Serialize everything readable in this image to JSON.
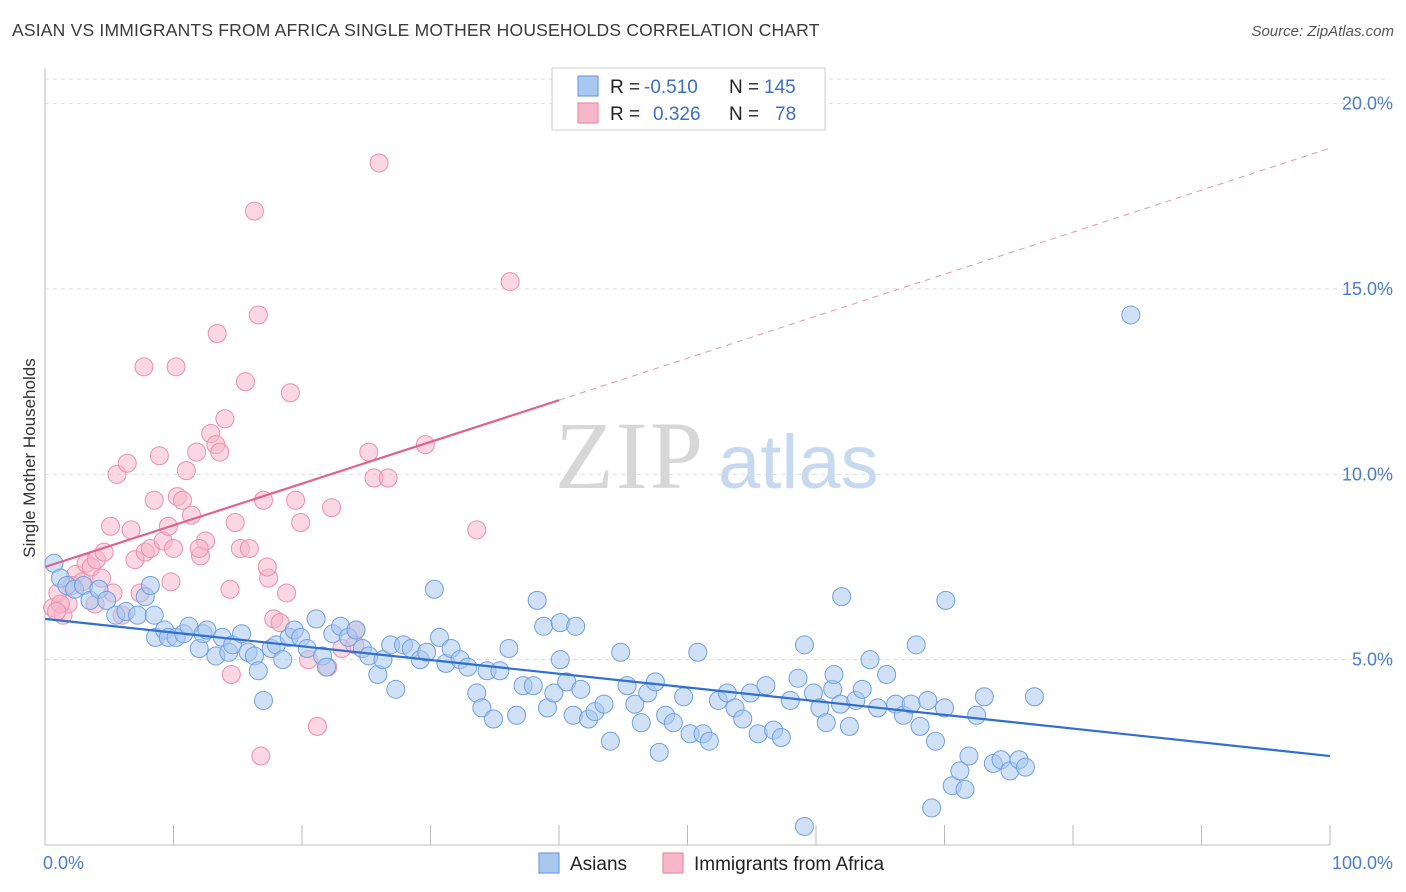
{
  "title": "ASIAN VS IMMIGRANTS FROM AFRICA SINGLE MOTHER HOUSEHOLDS CORRELATION CHART",
  "source": "Source: ZipAtlas.com",
  "watermark": {
    "zip": "ZIP",
    "atlas": "atlas"
  },
  "colors": {
    "asian_fill": "#a9c8ef",
    "asian_stroke": "#6fa0e0",
    "asian_line": "#2f6fd0",
    "africa_fill": "#f6b7cb",
    "africa_stroke": "#ec8eac",
    "africa_line": "#e0628f",
    "tick_label": "#4a7dc9",
    "grid": "#dddddd"
  },
  "legend": {
    "rows": [
      {
        "r_label": "R =",
        "r_value": "-0.510",
        "n_label": "N =",
        "n_value": "145"
      },
      {
        "r_label": "R =",
        "r_value": "0.326",
        "n_label": "N =",
        "n_value": "78"
      }
    ]
  },
  "bottom_legend": [
    "Asians",
    "Immigrants from Africa"
  ],
  "chart_data": {
    "type": "scatter",
    "title": "ASIAN VS IMMIGRANTS FROM AFRICA SINGLE MOTHER HOUSEHOLDS CORRELATION CHART",
    "xlabel": "",
    "ylabel": "Single Mother Households",
    "xlim": [
      0,
      100
    ],
    "ylim": [
      0,
      20.8
    ],
    "x_tick_labels": [
      "0.0%",
      "100.0%"
    ],
    "y_ticks": [
      5,
      10,
      15,
      20
    ],
    "y_tick_labels": [
      "5.0%",
      "10.0%",
      "15.0%",
      "20.0%"
    ],
    "grid": true,
    "legend_position": "top-center",
    "series": [
      {
        "name": "Asians",
        "r": -0.51,
        "n": 145,
        "trend": {
          "x": [
            0,
            100
          ],
          "y": [
            6.1,
            2.4
          ],
          "dashed_from": null
        },
        "points": [
          [
            0.7,
            7.6
          ],
          [
            1.2,
            7.2
          ],
          [
            1.7,
            7.0
          ],
          [
            2.3,
            6.9
          ],
          [
            3.0,
            7.0
          ],
          [
            3.5,
            6.6
          ],
          [
            4.2,
            6.9
          ],
          [
            4.8,
            6.6
          ],
          [
            5.5,
            6.2
          ],
          [
            6.3,
            6.3
          ],
          [
            7.2,
            6.2
          ],
          [
            7.8,
            6.7
          ],
          [
            8.2,
            7.0
          ],
          [
            8.5,
            6.2
          ],
          [
            8.6,
            5.6
          ],
          [
            9.3,
            5.8
          ],
          [
            9.6,
            5.6
          ],
          [
            10.2,
            5.6
          ],
          [
            10.8,
            5.7
          ],
          [
            11.2,
            5.9
          ],
          [
            12.0,
            5.3
          ],
          [
            12.3,
            5.7
          ],
          [
            12.6,
            5.8
          ],
          [
            13.3,
            5.1
          ],
          [
            13.8,
            5.6
          ],
          [
            14.3,
            5.2
          ],
          [
            14.6,
            5.4
          ],
          [
            15.3,
            5.7
          ],
          [
            15.8,
            5.2
          ],
          [
            16.3,
            5.1
          ],
          [
            16.6,
            4.7
          ],
          [
            17.0,
            3.9
          ],
          [
            17.6,
            5.3
          ],
          [
            18.0,
            5.4
          ],
          [
            18.5,
            5.0
          ],
          [
            19.0,
            5.6
          ],
          [
            19.4,
            5.8
          ],
          [
            19.9,
            5.6
          ],
          [
            20.4,
            5.3
          ],
          [
            21.1,
            6.1
          ],
          [
            21.6,
            5.1
          ],
          [
            21.9,
            4.8
          ],
          [
            22.4,
            5.7
          ],
          [
            23.0,
            5.9
          ],
          [
            23.6,
            5.6
          ],
          [
            24.2,
            5.8
          ],
          [
            24.7,
            5.3
          ],
          [
            25.2,
            5.1
          ],
          [
            25.9,
            4.6
          ],
          [
            26.3,
            5.0
          ],
          [
            26.9,
            5.4
          ],
          [
            27.3,
            4.2
          ],
          [
            27.9,
            5.4
          ],
          [
            28.5,
            5.3
          ],
          [
            29.2,
            5.0
          ],
          [
            29.7,
            5.2
          ],
          [
            30.3,
            6.9
          ],
          [
            30.7,
            5.6
          ],
          [
            31.2,
            4.9
          ],
          [
            31.6,
            5.3
          ],
          [
            32.3,
            5.0
          ],
          [
            32.9,
            4.8
          ],
          [
            33.6,
            4.1
          ],
          [
            34.0,
            3.7
          ],
          [
            34.4,
            4.7
          ],
          [
            34.9,
            3.4
          ],
          [
            35.4,
            4.7
          ],
          [
            36.1,
            5.3
          ],
          [
            36.7,
            3.5
          ],
          [
            37.2,
            4.3
          ],
          [
            38.0,
            4.3
          ],
          [
            38.3,
            6.6
          ],
          [
            38.8,
            5.9
          ],
          [
            39.1,
            3.7
          ],
          [
            39.6,
            4.1
          ],
          [
            40.1,
            5.0
          ],
          [
            40.6,
            4.4
          ],
          [
            41.1,
            3.5
          ],
          [
            41.7,
            4.2
          ],
          [
            42.3,
            3.4
          ],
          [
            42.8,
            3.6
          ],
          [
            43.5,
            3.8
          ],
          [
            44.0,
            2.8
          ],
          [
            44.8,
            5.2
          ],
          [
            45.3,
            4.3
          ],
          [
            45.9,
            3.8
          ],
          [
            46.4,
            3.3
          ],
          [
            46.9,
            4.1
          ],
          [
            47.5,
            4.4
          ],
          [
            47.8,
            2.5
          ],
          [
            48.3,
            3.5
          ],
          [
            48.9,
            3.3
          ],
          [
            49.7,
            4.0
          ],
          [
            50.2,
            3.0
          ],
          [
            50.8,
            5.2
          ],
          [
            51.2,
            3.0
          ],
          [
            51.7,
            2.8
          ],
          [
            52.4,
            3.9
          ],
          [
            53.1,
            4.1
          ],
          [
            53.7,
            3.7
          ],
          [
            54.3,
            3.4
          ],
          [
            54.9,
            4.1
          ],
          [
            55.5,
            3.0
          ],
          [
            56.1,
            4.3
          ],
          [
            56.7,
            3.1
          ],
          [
            57.3,
            2.9
          ],
          [
            58.0,
            3.9
          ],
          [
            58.6,
            4.5
          ],
          [
            59.1,
            5.4
          ],
          [
            59.8,
            4.1
          ],
          [
            60.3,
            3.7
          ],
          [
            60.8,
            3.3
          ],
          [
            61.3,
            4.2
          ],
          [
            61.9,
            3.8
          ],
          [
            62.6,
            3.2
          ],
          [
            63.1,
            3.9
          ],
          [
            63.6,
            4.2
          ],
          [
            64.2,
            5.0
          ],
          [
            64.8,
            3.7
          ],
          [
            65.5,
            4.6
          ],
          [
            66.2,
            3.8
          ],
          [
            66.8,
            3.5
          ],
          [
            67.4,
            3.8
          ],
          [
            68.1,
            3.2
          ],
          [
            68.7,
            3.9
          ],
          [
            69.3,
            2.8
          ],
          [
            70.0,
            3.7
          ],
          [
            70.6,
            1.6
          ],
          [
            71.2,
            2.0
          ],
          [
            71.9,
            2.4
          ],
          [
            72.5,
            3.5
          ],
          [
            73.1,
            4.0
          ],
          [
            73.8,
            2.2
          ],
          [
            74.4,
            2.3
          ],
          [
            75.1,
            2.0
          ],
          [
            75.8,
            2.3
          ],
          [
            76.3,
            2.1
          ],
          [
            77.0,
            4.0
          ],
          [
            61.4,
            4.6
          ],
          [
            62.0,
            6.7
          ],
          [
            67.8,
            5.4
          ],
          [
            70.1,
            6.6
          ],
          [
            59.1,
            0.5
          ],
          [
            69.0,
            1.0
          ],
          [
            71.6,
            1.5
          ],
          [
            84.5,
            14.3
          ],
          [
            40.1,
            6.0
          ],
          [
            41.3,
            5.9
          ]
        ]
      },
      {
        "name": "Immigrants from Africa",
        "r": 0.326,
        "n": 78,
        "trend": {
          "x": [
            0,
            40,
            100
          ],
          "y": [
            7.5,
            12.0,
            18.8
          ],
          "dashed_from": 40
        },
        "points": [
          [
            0.6,
            6.4
          ],
          [
            1.0,
            6.8
          ],
          [
            1.4,
            6.2
          ],
          [
            1.8,
            6.5
          ],
          [
            2.4,
            7.3
          ],
          [
            2.9,
            7.1
          ],
          [
            3.2,
            7.6
          ],
          [
            3.6,
            7.5
          ],
          [
            4.0,
            7.7
          ],
          [
            4.6,
            7.9
          ],
          [
            5.1,
            8.6
          ],
          [
            5.6,
            10.0
          ],
          [
            6.0,
            6.2
          ],
          [
            6.4,
            10.3
          ],
          [
            7.0,
            7.7
          ],
          [
            7.4,
            6.8
          ],
          [
            7.8,
            7.9
          ],
          [
            8.2,
            8.0
          ],
          [
            8.5,
            9.3
          ],
          [
            8.9,
            10.5
          ],
          [
            9.2,
            8.2
          ],
          [
            9.6,
            8.6
          ],
          [
            10.0,
            8.0
          ],
          [
            10.3,
            9.4
          ],
          [
            10.7,
            9.3
          ],
          [
            11.0,
            10.1
          ],
          [
            11.4,
            8.9
          ],
          [
            11.8,
            10.6
          ],
          [
            12.1,
            7.8
          ],
          [
            12.5,
            8.2
          ],
          [
            12.9,
            11.1
          ],
          [
            13.3,
            10.8
          ],
          [
            13.6,
            10.6
          ],
          [
            14.0,
            11.5
          ],
          [
            14.4,
            6.9
          ],
          [
            14.8,
            8.7
          ],
          [
            15.2,
            8.0
          ],
          [
            15.6,
            12.5
          ],
          [
            15.9,
            8.0
          ],
          [
            16.3,
            17.1
          ],
          [
            16.6,
            14.3
          ],
          [
            17.0,
            9.3
          ],
          [
            17.4,
            7.2
          ],
          [
            17.8,
            6.1
          ],
          [
            18.3,
            6.0
          ],
          [
            19.1,
            12.2
          ],
          [
            19.5,
            9.3
          ],
          [
            19.9,
            8.7
          ],
          [
            20.5,
            5.0
          ],
          [
            21.2,
            3.2
          ],
          [
            22.0,
            4.8
          ],
          [
            23.1,
            5.3
          ],
          [
            24.2,
            5.8
          ],
          [
            25.2,
            10.6
          ],
          [
            25.6,
            9.9
          ],
          [
            26.7,
            9.9
          ],
          [
            29.6,
            10.8
          ],
          [
            33.6,
            8.5
          ],
          [
            36.2,
            15.2
          ],
          [
            26.0,
            18.4
          ],
          [
            13.4,
            13.8
          ],
          [
            10.2,
            12.9
          ],
          [
            7.7,
            12.9
          ],
          [
            5.3,
            6.8
          ],
          [
            3.9,
            6.5
          ],
          [
            4.4,
            7.2
          ],
          [
            2.1,
            7.0
          ],
          [
            1.2,
            6.5
          ],
          [
            0.9,
            6.3
          ],
          [
            17.3,
            7.5
          ],
          [
            14.5,
            4.6
          ],
          [
            16.8,
            2.4
          ],
          [
            22.3,
            9.1
          ],
          [
            24.1,
            5.4
          ],
          [
            9.8,
            7.1
          ],
          [
            12.0,
            8.0
          ],
          [
            6.7,
            8.5
          ],
          [
            18.8,
            6.8
          ]
        ]
      }
    ]
  }
}
